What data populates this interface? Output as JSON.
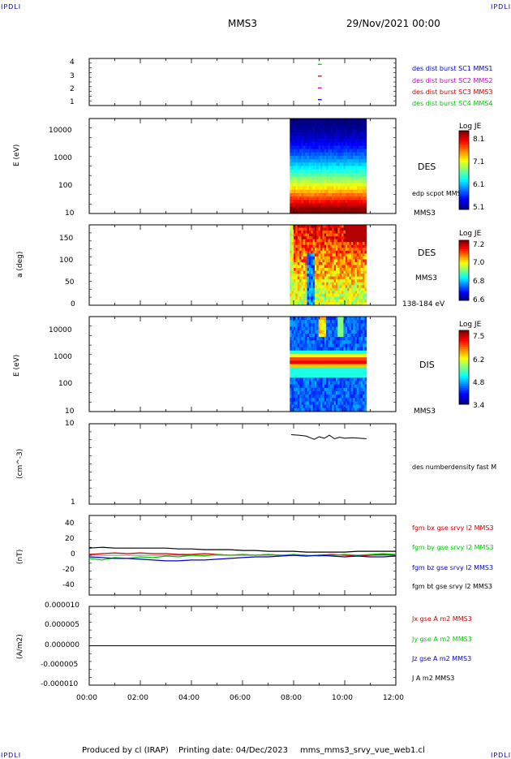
{
  "header": {
    "corner_left": "IPDLI",
    "corner_right": "IPDLI",
    "spacecraft": "MMS3",
    "date": "29/Nov/2021 00:00"
  },
  "footer": {
    "credit": "Produced by cl (IRAP)",
    "printing": "Printing date: 04/Dec/2023",
    "file": "mms_mms3_srvy_vue_web1.cl",
    "corner_left": "IPDLI",
    "corner_right": "IPDLI"
  },
  "time_axis": {
    "ticks": [
      "00:00",
      "02:00",
      "04:00",
      "06:00",
      "08:00",
      "10:00",
      "12:00"
    ]
  },
  "chart_data": [
    {
      "type": "scatter",
      "panel": "burst",
      "yticks": [
        "4",
        "3",
        "2",
        "1"
      ],
      "series": [
        {
          "name": "des dist burst SC1 MMS1",
          "color": "#0000cc",
          "y": 1,
          "x_hours": [
            8.95,
            9.1
          ]
        },
        {
          "name": "des dist burst SC2 MMS2",
          "color": "#cc00cc",
          "y": 2,
          "x_hours": [
            8.95,
            9.1
          ]
        },
        {
          "name": "des dist burst SC3 MMS3",
          "color": "#cc0000",
          "y": 3,
          "x_hours": [
            8.95,
            9.1
          ]
        },
        {
          "name": "des dist burst SC4 MMS4",
          "color": "#00cc00",
          "y": 4,
          "x_hours": [
            8.95,
            9.1
          ]
        }
      ]
    },
    {
      "type": "heatmap",
      "panel": "des_energy",
      "ylabel": "E (eV)",
      "yscale": "log",
      "yticks": [
        "10000",
        "1000",
        "100",
        "10"
      ],
      "x_range_hours": [
        7.85,
        10.85
      ],
      "instrument": "DES",
      "spacecraft": "MMS3",
      "overlay_label": "edp scpot MMS3",
      "colorbar": {
        "label": "Log JE",
        "ticks": [
          "8.1",
          "7.1",
          "6.1",
          "5.1"
        ]
      }
    },
    {
      "type": "heatmap",
      "panel": "des_pitch",
      "ylabel": "a (deg)",
      "yticks": [
        "150",
        "100",
        "50",
        "0"
      ],
      "ylim": [
        0,
        180
      ],
      "x_range_hours": [
        7.85,
        10.85
      ],
      "instrument": "DES",
      "spacecraft": "MMS3",
      "energy_range": "138-184 eV",
      "colorbar": {
        "label": "Log JE",
        "ticks": [
          "7.2",
          "7.0",
          "6.8",
          "6.6"
        ]
      }
    },
    {
      "type": "heatmap",
      "panel": "dis_energy",
      "ylabel": "E (eV)",
      "yscale": "log",
      "yticks": [
        "10000",
        "1000",
        "100",
        "10"
      ],
      "x_range_hours": [
        7.85,
        10.85
      ],
      "instrument": "DIS",
      "spacecraft": "MMS3",
      "colorbar": {
        "label": "Log JE",
        "ticks": [
          "7.5",
          "6.2",
          "4.8",
          "3.4"
        ]
      }
    },
    {
      "type": "line",
      "panel": "density",
      "ylabel": "(cm^-3)",
      "yscale": "log",
      "yticks": [
        "10",
        "1"
      ],
      "ylim": [
        1,
        10
      ],
      "series": [
        {
          "name": "des numberdensity fast M",
          "color": "#000000",
          "x_hours": [
            7.9,
            8.2,
            8.5,
            8.8,
            9.0,
            9.2,
            9.4,
            9.6,
            9.8,
            10.0,
            10.3,
            10.6,
            10.85
          ],
          "y": [
            7.3,
            7.2,
            7.0,
            6.4,
            6.9,
            6.6,
            7.2,
            6.5,
            6.8,
            6.6,
            6.7,
            6.6,
            6.5
          ]
        }
      ]
    },
    {
      "type": "line",
      "panel": "magnetic_field",
      "ylabel": "(nT)",
      "yticks": [
        "40",
        "20",
        "0",
        "-20",
        "-40"
      ],
      "ylim": [
        -50,
        50
      ],
      "x": [
        0,
        0.5,
        1,
        1.5,
        2,
        2.5,
        3,
        3.5,
        4,
        4.5,
        5,
        5.5,
        6,
        6.5,
        7,
        7.5,
        8,
        8.5,
        9,
        9.5,
        10,
        10.5,
        11,
        11.5,
        12
      ],
      "series": [
        {
          "name": "fgm bx gse srvy l2 MMS3",
          "color": "#cc0000",
          "values": [
            1,
            2,
            3,
            2,
            3,
            2,
            2,
            1,
            1,
            2,
            1,
            0,
            1,
            0,
            1,
            0,
            0,
            -1,
            0,
            1,
            0,
            -1,
            0,
            1,
            0
          ]
        },
        {
          "name": "fgm by gse srvy l2 MMS3",
          "color": "#00cc00",
          "values": [
            -4,
            -6,
            -3,
            -4,
            -2,
            -3,
            -1,
            -2,
            0,
            -1,
            1,
            0,
            1,
            0,
            1,
            0,
            1,
            0,
            -1,
            0,
            1,
            0,
            1,
            2,
            1
          ]
        },
        {
          "name": "fgm bz gse srvy l2 MMS3",
          "color": "#0000cc",
          "values": [
            -2,
            -3,
            -4,
            -4,
            -5,
            -6,
            -7,
            -7,
            -6,
            -6,
            -5,
            -4,
            -3,
            -2,
            -2,
            -1,
            0,
            -1,
            0,
            -1,
            -2,
            -1,
            -2,
            -2,
            -1
          ]
        },
        {
          "name": "fgm bt gse srvy l2 MMS3",
          "color": "#000000",
          "values": [
            9,
            10,
            9,
            9,
            9,
            9,
            9,
            8,
            8,
            7,
            7,
            7,
            6,
            6,
            5,
            5,
            5,
            4,
            4,
            4,
            4,
            5,
            5,
            5,
            5
          ]
        }
      ]
    },
    {
      "type": "line",
      "panel": "current",
      "ylabel": "(A/m2)",
      "yticks": [
        "0.000010",
        "0.000005",
        "0.000000",
        "-0.000005",
        "-0.000010"
      ],
      "ylim": [
        -1e-05,
        1e-05
      ],
      "series": [
        {
          "name": "Jx gse A m2 MMS3",
          "color": "#cc0000"
        },
        {
          "name": "Jy gse A m2 MMS3",
          "color": "#00cc00"
        },
        {
          "name": "Jz gse A m2 MMS3",
          "color": "#0000cc"
        },
        {
          "name": "J A m2 MMS3",
          "color": "#000000"
        }
      ]
    }
  ]
}
